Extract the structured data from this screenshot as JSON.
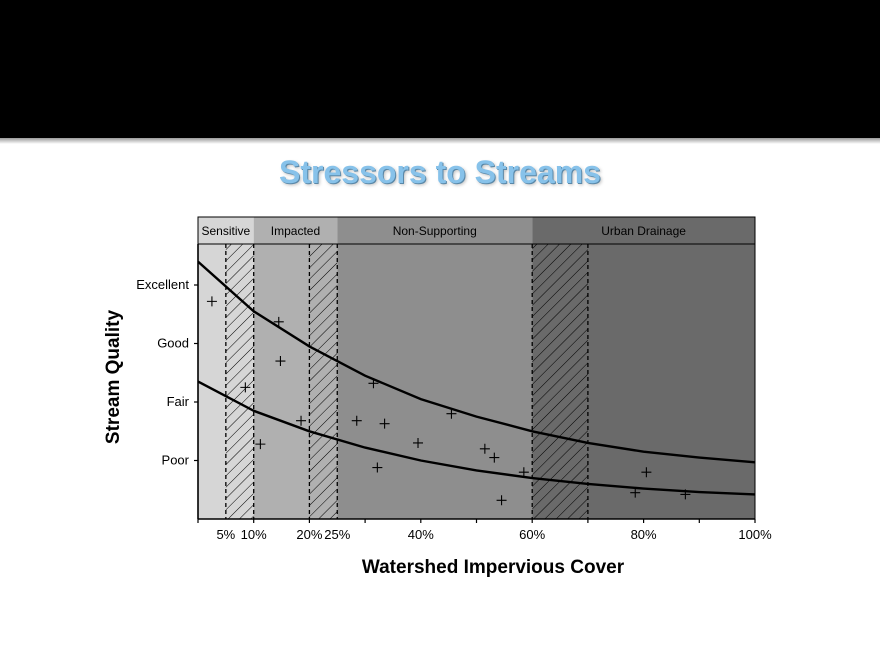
{
  "slide": {
    "title": "Stressors to Streams"
  },
  "chart_data": {
    "type": "scatter",
    "xlabel": "Watershed Impervious Cover",
    "ylabel": "Stream Quality",
    "xlim": [
      0,
      100
    ],
    "x_tick_labels": [
      {
        "value": 5,
        "label": "5%"
      },
      {
        "value": 10,
        "label": "10%"
      },
      {
        "value": 20,
        "label": "20%"
      },
      {
        "value": 25,
        "label": "25%"
      },
      {
        "value": 40,
        "label": "40%"
      },
      {
        "value": 60,
        "label": "60%"
      },
      {
        "value": 80,
        "label": "80%"
      },
      {
        "value": 100,
        "label": "100%"
      }
    ],
    "y_categories": [
      "Poor",
      "Fair",
      "Good",
      "Excellent"
    ],
    "zones": [
      {
        "name": "Sensitive",
        "from": 0,
        "to": 10,
        "color": "#d6d6d6"
      },
      {
        "name": "Impacted",
        "from": 10,
        "to": 25,
        "color": "#b0b0b0"
      },
      {
        "name": "Non-Supporting",
        "from": 25,
        "to": 60,
        "color": "#8e8e8e"
      },
      {
        "name": "Urban Drainage",
        "from": 60,
        "to": 100,
        "color": "#6a6a6a"
      }
    ],
    "transition_bands": [
      [
        5,
        10
      ],
      [
        20,
        25
      ],
      [
        60,
        70
      ]
    ],
    "upper_curve": [
      [
        0,
        4.4
      ],
      [
        10,
        3.55
      ],
      [
        20,
        2.95
      ],
      [
        30,
        2.45
      ],
      [
        40,
        2.05
      ],
      [
        50,
        1.75
      ],
      [
        60,
        1.5
      ],
      [
        70,
        1.3
      ],
      [
        80,
        1.15
      ],
      [
        90,
        1.05
      ],
      [
        100,
        0.97
      ]
    ],
    "lower_curve": [
      [
        0,
        2.35
      ],
      [
        10,
        1.85
      ],
      [
        20,
        1.5
      ],
      [
        30,
        1.22
      ],
      [
        40,
        1.0
      ],
      [
        50,
        0.83
      ],
      [
        60,
        0.7
      ],
      [
        70,
        0.6
      ],
      [
        80,
        0.52
      ],
      [
        90,
        0.46
      ],
      [
        100,
        0.42
      ]
    ],
    "points": [
      {
        "x": 2.5,
        "y": 3.72
      },
      {
        "x": 8.5,
        "y": 2.25
      },
      {
        "x": 11.2,
        "y": 1.28
      },
      {
        "x": 14.5,
        "y": 3.37
      },
      {
        "x": 14.8,
        "y": 2.7
      },
      {
        "x": 18.5,
        "y": 1.68
      },
      {
        "x": 28.5,
        "y": 1.68
      },
      {
        "x": 31.5,
        "y": 2.32
      },
      {
        "x": 32.2,
        "y": 0.88
      },
      {
        "x": 33.5,
        "y": 1.63
      },
      {
        "x": 39.5,
        "y": 1.3
      },
      {
        "x": 45.5,
        "y": 1.8
      },
      {
        "x": 51.5,
        "y": 1.2
      },
      {
        "x": 53.2,
        "y": 1.05
      },
      {
        "x": 54.5,
        "y": 0.32
      },
      {
        "x": 58.5,
        "y": 0.8
      },
      {
        "x": 78.5,
        "y": 0.45
      },
      {
        "x": 80.5,
        "y": 0.8
      },
      {
        "x": 87.5,
        "y": 0.42
      }
    ]
  }
}
